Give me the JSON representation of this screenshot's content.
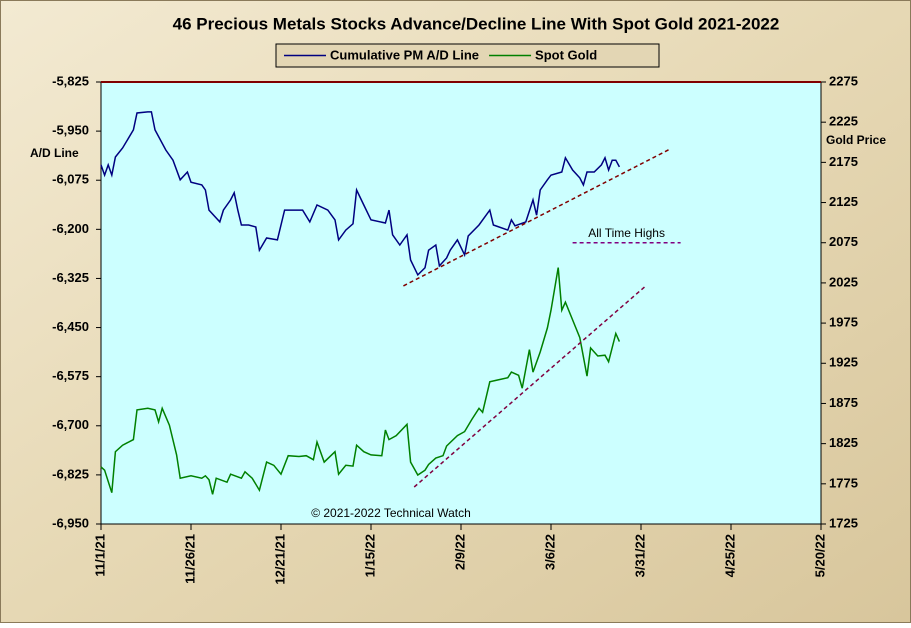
{
  "chart_data": {
    "type": "line",
    "title": "46 Precious Metals Stocks Advance/Decline Line With Spot Gold 2021-2022",
    "ylabel": "A/D Line",
    "y2label": "Gold Price",
    "credit": "© 2021-2022 Technical Watch",
    "xlim": [
      "11/1/21",
      "5/20/22"
    ],
    "xticks": [
      "11/1/21",
      "11/26/21",
      "12/21/21",
      "1/15/22",
      "2/9/22",
      "3/6/22",
      "3/31/22",
      "4/25/22",
      "5/20/22"
    ],
    "ylim": [
      -6950,
      -5825
    ],
    "yticks": [
      {
        "value": -5825,
        "label": "-5,825"
      },
      {
        "value": -5950,
        "label": "-5,950"
      },
      {
        "value": -6075,
        "label": "-6,075"
      },
      {
        "value": -6200,
        "label": "-6,200"
      },
      {
        "value": -6325,
        "label": "-6,325"
      },
      {
        "value": -6450,
        "label": "-6,450"
      },
      {
        "value": -6575,
        "label": "-6,575"
      },
      {
        "value": -6700,
        "label": "-6,700"
      },
      {
        "value": -6825,
        "label": "-6,825"
      },
      {
        "value": -6950,
        "label": "-6,950"
      }
    ],
    "y2lim": [
      1725,
      2275
    ],
    "y2ticks": [
      2275,
      2225,
      2175,
      2125,
      2075,
      2025,
      1975,
      1925,
      1875,
      1825,
      1775,
      1725
    ],
    "series": [
      {
        "name": "Cumulative PM A/D Line",
        "color": "#000080",
        "axis": "y",
        "x": [
          "11/1/21",
          "11/2/21",
          "11/3/21",
          "11/4/21",
          "11/5/21",
          "11/7/21",
          "11/10/21",
          "11/11/21",
          "11/14/21",
          "11/15/21",
          "11/16/21",
          "11/19/21",
          "11/21/21",
          "11/23/21",
          "11/25/21",
          "11/26/21",
          "11/29/21",
          "11/30/21",
          "12/1/21",
          "12/4/21",
          "12/5/21",
          "12/7/21",
          "12/8/21",
          "12/9/21",
          "12/10/21",
          "12/12/21",
          "12/14/21",
          "12/15/21",
          "12/17/21",
          "12/20/21",
          "12/22/21",
          "12/27/21",
          "12/29/21",
          "12/31/21",
          "1/3/22",
          "1/5/22",
          "1/6/22",
          "1/8/22",
          "1/10/22",
          "1/11/22",
          "1/13/22",
          "1/15/22",
          "1/19/22",
          "1/20/22",
          "1/21/22",
          "1/23/22",
          "1/25/22",
          "1/26/22",
          "1/28/22",
          "1/30/22",
          "1/31/22",
          "2/2/22",
          "2/3/22",
          "2/5/22",
          "2/6/22",
          "2/8/22",
          "2/10/22",
          "2/11/22",
          "2/14/22",
          "2/17/22",
          "2/18/22",
          "2/22/22",
          "2/23/22",
          "2/24/22",
          "2/27/22",
          "3/1/22",
          "3/2/22",
          "3/3/22",
          "3/5/22",
          "3/6/22",
          "3/9/22",
          "3/10/22",
          "3/12/22",
          "3/14/22",
          "3/15/22",
          "3/16/22",
          "3/18/22",
          "3/20/22",
          "3/21/22",
          "3/22/22",
          "3/23/22",
          "3/24/22",
          "3/25/22"
        ],
        "values": [
          -6036,
          -6062,
          -6036,
          -6062,
          -6016,
          -5993,
          -5947,
          -5904,
          -5901,
          -5901,
          -5947,
          -5998,
          -6024,
          -6074,
          -6054,
          -6080,
          -6087,
          -6100,
          -6151,
          -6181,
          -6151,
          -6125,
          -6107,
          -6151,
          -6189,
          -6189,
          -6194,
          -6253,
          -6222,
          -6227,
          -6151,
          -6151,
          -6181,
          -6138,
          -6151,
          -6176,
          -6227,
          -6202,
          -6186,
          -6100,
          -6138,
          -6176,
          -6184,
          -6151,
          -6214,
          -6240,
          -6214,
          -6278,
          -6316,
          -6298,
          -6253,
          -6240,
          -6293,
          -6273,
          -6253,
          -6227,
          -6265,
          -6217,
          -6189,
          -6151,
          -6189,
          -6202,
          -6176,
          -6191,
          -6181,
          -6125,
          -6164,
          -6100,
          -6074,
          -6062,
          -6054,
          -6018,
          -6049,
          -6069,
          -6087,
          -6054,
          -6054,
          -6036,
          -6018,
          -6049,
          -6024,
          -6024,
          -6041
        ]
      },
      {
        "name": "Spot Gold",
        "color": "#008000",
        "axis": "y2",
        "x": [
          "11/1/21",
          "11/2/21",
          "11/4/21",
          "11/5/21",
          "11/7/21",
          "11/10/21",
          "11/11/21",
          "11/14/21",
          "11/16/21",
          "11/17/21",
          "11/18/21",
          "11/20/21",
          "11/22/21",
          "11/23/21",
          "11/26/21",
          "11/29/21",
          "11/30/21",
          "12/1/21",
          "12/2/21",
          "12/3/21",
          "12/6/21",
          "12/7/21",
          "12/10/21",
          "12/11/21",
          "12/13/21",
          "12/15/21",
          "12/17/21",
          "12/19/21",
          "12/21/21",
          "12/23/21",
          "12/26/21",
          "12/28/21",
          "12/30/21",
          "12/31/21",
          "1/2/22",
          "1/5/22",
          "1/6/22",
          "1/8/22",
          "1/10/22",
          "1/11/22",
          "1/13/22",
          "1/15/22",
          "1/18/22",
          "1/19/22",
          "1/20/22",
          "1/22/22",
          "1/25/22",
          "1/26/22",
          "1/28/22",
          "1/30/22",
          "1/31/22",
          "2/2/22",
          "2/4/22",
          "2/5/22",
          "2/8/22",
          "2/10/22",
          "2/12/22",
          "2/14/22",
          "2/15/22",
          "2/17/22",
          "2/19/22",
          "2/22/22",
          "2/23/22",
          "2/25/22",
          "2/26/22",
          "2/28/22",
          "3/1/22",
          "3/3/22",
          "3/5/22",
          "3/6/22",
          "3/8/22",
          "3/9/22",
          "3/10/22",
          "3/12/22",
          "3/14/22",
          "3/16/22",
          "3/17/22",
          "3/19/22",
          "3/21/22",
          "3/22/22",
          "3/24/22",
          "3/25/22"
        ],
        "values": [
          1796,
          1792,
          1764,
          1815,
          1823,
          1830,
          1867,
          1869,
          1867,
          1852,
          1869,
          1848,
          1811,
          1782,
          1785,
          1782,
          1785,
          1780,
          1762,
          1782,
          1777,
          1787,
          1782,
          1790,
          1782,
          1767,
          1802,
          1798,
          1787,
          1810,
          1809,
          1810,
          1805,
          1827,
          1802,
          1815,
          1787,
          1798,
          1797,
          1823,
          1815,
          1811,
          1810,
          1842,
          1830,
          1835,
          1849,
          1802,
          1786,
          1792,
          1799,
          1807,
          1810,
          1822,
          1835,
          1840,
          1855,
          1869,
          1864,
          1902,
          1904,
          1907,
          1914,
          1910,
          1894,
          1942,
          1914,
          1939,
          1969,
          1991,
          2044,
          1991,
          2001,
          1979,
          1957,
          1909,
          1944,
          1934,
          1935,
          1927,
          1962,
          1952
        ]
      }
    ],
    "trend_lines": [
      {
        "axis": "y",
        "color": "#800000",
        "x": [
          "1/24/22",
          "4/8/22"
        ],
        "values": [
          -6344,
          -5996
        ]
      },
      {
        "axis": "y2",
        "color": "#800040",
        "x": [
          "1/27/22",
          "4/1/22"
        ],
        "values": [
          1771,
          2020
        ]
      }
    ],
    "annotation": {
      "text": "All Time Highs",
      "color": "#800080",
      "axis": "y2",
      "x": [
        "3/12/22",
        "4/11/22"
      ],
      "value": 2075
    },
    "background": "#ccffff"
  }
}
